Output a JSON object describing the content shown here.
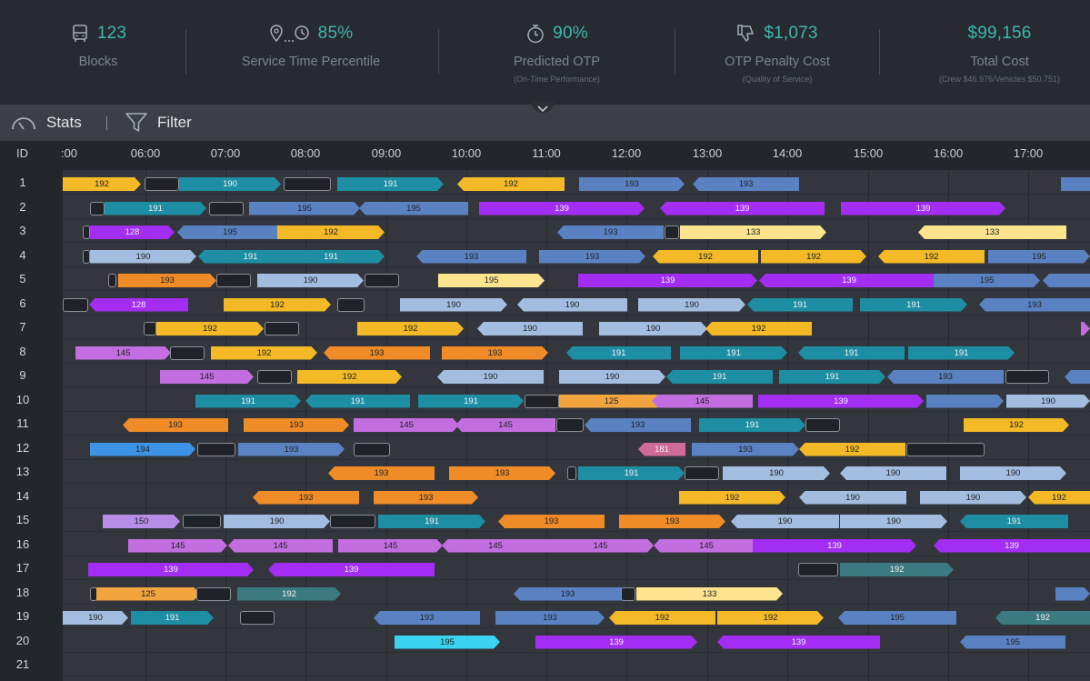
{
  "kpis": [
    {
      "icon": "bus-icon",
      "value": "123",
      "label": "Blocks",
      "sub": ""
    },
    {
      "icon": "route-clock-icon",
      "value": "85%",
      "label": "Service Time Percentile",
      "sub": ""
    },
    {
      "icon": "stopwatch-icon",
      "value": "90%",
      "label": "Predicted OTP",
      "sub": "(On-Time Performance)"
    },
    {
      "icon": "thumbs-down-icon",
      "value": "$1,073",
      "label": "OTP Penalty Cost",
      "sub": "(Quality of Service)"
    },
    {
      "icon": "",
      "value": "$99,156",
      "label": "Total Cost",
      "sub": "(Crew $46.976/Vehicles $50.751)"
    }
  ],
  "toolbar": {
    "stats_label": "Stats",
    "filter_label": "Filter",
    "separator": "|"
  },
  "schedule": {
    "id_header": "ID",
    "hours": [
      ":00",
      "06:00",
      "07:00",
      "08:00",
      "09:00",
      "10:00",
      "11:00",
      "12:00",
      "13:00",
      "14:00",
      "15:00",
      "16:00",
      "17:00"
    ],
    "colors": {
      "190": "#a2bde0",
      "191": "#1d8ea3",
      "192": "#f3b926",
      "193": "#5a82c3",
      "195": "#5a82c3",
      "139": "#a32df2",
      "133": "#fde48e",
      "128": "#a32df2",
      "145": "#c36ee0",
      "125": "#f2a43f",
      "181": "#cf6c96",
      "194": "#3d93e6",
      "150": "#b78de8",
      "193o": "#f08c28",
      "195y": "#fde48e",
      "192t": "#3a7a80",
      "195t": "#3a7a80",
      "195c": "#3ad4f0"
    },
    "rows": [
      {
        "id": "1",
        "trips": [
          [
            "192",
            "192",
            "r"
          ],
          [
            "",
            "",
            "g"
          ],
          [
            "190",
            "191",
            "r"
          ],
          [
            "",
            "",
            "g"
          ],
          [
            "191",
            "191",
            "r"
          ],
          [
            "192",
            "192",
            "l"
          ],
          [
            "193",
            "193",
            "r"
          ],
          [
            "193",
            "193",
            "l"
          ],
          [
            "",
            "193",
            "r"
          ]
        ]
      },
      {
        "id": "2",
        "trips": [
          [
            "",
            "",
            "g"
          ],
          [
            "191",
            "191",
            "r"
          ],
          [
            "",
            "",
            "g"
          ],
          [
            "195",
            "193",
            "r"
          ],
          [
            "195",
            "193",
            "l"
          ],
          [
            "139",
            "139",
            "r"
          ],
          [
            "139",
            "139",
            "l"
          ],
          [
            "139",
            "139",
            "r"
          ]
        ]
      },
      {
        "id": "3",
        "trips": [
          [
            "",
            "",
            "g"
          ],
          [
            "128",
            "128",
            "r"
          ],
          [
            "195",
            "193",
            "l"
          ],
          [
            "192",
            "192",
            "r"
          ],
          [
            "193",
            "193",
            "l"
          ],
          [
            "",
            "",
            "g"
          ],
          [
            "133",
            "133",
            "r"
          ],
          [
            "133",
            "133",
            "l"
          ]
        ]
      },
      {
        "id": "4",
        "trips": [
          [
            "",
            "",
            "g"
          ],
          [
            "190",
            "190",
            "r"
          ],
          [
            "191",
            "191",
            "l"
          ],
          [
            "191",
            "191",
            "r"
          ],
          [
            "193",
            "193",
            "l"
          ],
          [
            "193",
            "193",
            "r"
          ],
          [
            "192",
            "192",
            "l"
          ],
          [
            "192",
            "192",
            "r"
          ],
          [
            "192",
            "192",
            "l"
          ],
          [
            "195",
            "193",
            "r"
          ]
        ]
      },
      {
        "id": "5",
        "trips": [
          [
            "",
            "",
            "g"
          ],
          [
            "193",
            "193o",
            "r"
          ],
          [
            "",
            "",
            "g"
          ],
          [
            "190",
            "190",
            "r"
          ],
          [
            "",
            "",
            "g"
          ],
          [
            "195",
            "195y",
            "r"
          ],
          [
            "139",
            "139",
            "r"
          ],
          [
            "139",
            "139",
            "l"
          ],
          [
            "195",
            "193",
            "r"
          ],
          [
            "",
            "193",
            "l"
          ]
        ]
      },
      {
        "id": "6",
        "trips": [
          [
            "",
            "",
            "g"
          ],
          [
            "128",
            "128",
            "l"
          ],
          [
            "192",
            "192",
            "r"
          ],
          [
            "",
            "",
            "g"
          ],
          [
            "190",
            "190",
            "r"
          ],
          [
            "190",
            "190",
            "l"
          ],
          [
            "190",
            "190",
            "r"
          ],
          [
            "191",
            "191",
            "l"
          ],
          [
            "191",
            "191",
            "r"
          ],
          [
            "193",
            "193",
            "l"
          ]
        ]
      },
      {
        "id": "7",
        "trips": [
          [
            "",
            "",
            "g"
          ],
          [
            "192",
            "192",
            "r"
          ],
          [
            "",
            "",
            "g"
          ],
          [
            "192",
            "192",
            "r"
          ],
          [
            "190",
            "190",
            "l"
          ],
          [
            "190",
            "190",
            "r"
          ],
          [
            "192",
            "192",
            "l"
          ],
          [
            "",
            "145",
            "r"
          ]
        ]
      },
      {
        "id": "8",
        "trips": [
          [
            "145",
            "145",
            "r"
          ],
          [
            "",
            "",
            "g"
          ],
          [
            "192",
            "192",
            "r"
          ],
          [
            "193",
            "193o",
            "l"
          ],
          [
            "193",
            "193o",
            "r"
          ],
          [
            "191",
            "191",
            "l"
          ],
          [
            "191",
            "191",
            "r"
          ],
          [
            "191",
            "191",
            "l"
          ],
          [
            "191",
            "191",
            "r"
          ]
        ]
      },
      {
        "id": "9",
        "trips": [
          [
            "145",
            "145",
            "r"
          ],
          [
            "",
            "",
            "g"
          ],
          [
            "192",
            "192",
            "r"
          ],
          [
            "190",
            "190",
            "l"
          ],
          [
            "190",
            "190",
            "r"
          ],
          [
            "191",
            "191",
            "l"
          ],
          [
            "191",
            "191",
            "r"
          ],
          [
            "193",
            "193",
            "l"
          ],
          [
            "",
            "",
            "g"
          ],
          [
            "",
            "193",
            "l"
          ]
        ]
      },
      {
        "id": "10",
        "trips": [
          [
            "191",
            "191",
            "r"
          ],
          [
            "191",
            "191",
            "l"
          ],
          [
            "191",
            "191",
            "r"
          ],
          [
            "",
            "",
            "g"
          ],
          [
            "125",
            "125",
            "r"
          ],
          [
            "145",
            "145",
            "l"
          ],
          [
            "139",
            "139",
            "r"
          ],
          [
            "",
            "193",
            "r"
          ],
          [
            "190",
            "190",
            "r"
          ]
        ]
      },
      {
        "id": "11",
        "trips": [
          [
            "193",
            "193o",
            "l"
          ],
          [
            "193",
            "193o",
            "r"
          ],
          [
            "145",
            "145",
            "r"
          ],
          [
            "145",
            "145",
            "l"
          ],
          [
            "",
            "",
            "g"
          ],
          [
            "193",
            "193",
            "l"
          ],
          [
            "191",
            "191",
            "r"
          ],
          [
            "",
            "",
            "g"
          ],
          [
            "192",
            "192",
            "r"
          ]
        ]
      },
      {
        "id": "12",
        "trips": [
          [
            "194",
            "194",
            "r"
          ],
          [
            "",
            "",
            "g"
          ],
          [
            "193",
            "193",
            "r"
          ],
          [
            "",
            "",
            "g"
          ],
          [
            "181",
            "181",
            "l"
          ],
          [
            "193",
            "193",
            "r"
          ],
          [
            "192",
            "192",
            "l"
          ],
          [
            "",
            "",
            "g"
          ]
        ]
      },
      {
        "id": "13",
        "trips": [
          [
            "193",
            "193o",
            "l"
          ],
          [
            "193",
            "193o",
            "r"
          ],
          [
            "",
            "",
            "g"
          ],
          [
            "191",
            "191",
            "r"
          ],
          [
            "",
            "",
            "g"
          ],
          [
            "190",
            "190",
            "r"
          ],
          [
            "190",
            "190",
            "l"
          ],
          [
            "190",
            "190",
            "r"
          ]
        ]
      },
      {
        "id": "14",
        "trips": [
          [
            "193",
            "193o",
            "l"
          ],
          [
            "193",
            "193o",
            "r"
          ],
          [
            "192",
            "192",
            "r"
          ],
          [
            "190",
            "190",
            "l"
          ],
          [
            "190",
            "190",
            "r"
          ],
          [
            "192",
            "192",
            "l"
          ]
        ]
      },
      {
        "id": "15",
        "trips": [
          [
            "150",
            "150",
            "r"
          ],
          [
            "",
            "",
            "g"
          ],
          [
            "190",
            "190",
            "r"
          ],
          [
            "",
            "",
            "g"
          ],
          [
            "191",
            "191",
            "r"
          ],
          [
            "193",
            "193o",
            "l"
          ],
          [
            "193",
            "193o",
            "r"
          ],
          [
            "190",
            "190",
            "l"
          ],
          [
            "190",
            "190",
            "r"
          ],
          [
            "191",
            "191",
            "l"
          ]
        ]
      },
      {
        "id": "16",
        "trips": [
          [
            "145",
            "145",
            "r"
          ],
          [
            "145",
            "145",
            "l"
          ],
          [
            "145",
            "145",
            "r"
          ],
          [
            "145",
            "145",
            "l"
          ],
          [
            "145",
            "145",
            "r"
          ],
          [
            "145",
            "145",
            "l"
          ],
          [
            "139",
            "139",
            "r"
          ],
          [
            "139",
            "139",
            "l"
          ]
        ]
      },
      {
        "id": "17",
        "trips": [
          [
            "139",
            "139",
            "r"
          ],
          [
            "139",
            "139",
            "l"
          ],
          [
            "",
            "",
            "g"
          ],
          [
            "192",
            "192t",
            "r"
          ]
        ]
      },
      {
        "id": "18",
        "trips": [
          [
            "",
            "",
            "g"
          ],
          [
            "125",
            "125",
            "r"
          ],
          [
            "",
            "",
            "g"
          ],
          [
            "192",
            "192t",
            "r"
          ],
          [
            "193",
            "193",
            "l"
          ],
          [
            "",
            "",
            "g"
          ],
          [
            "133",
            "133",
            "r"
          ],
          [
            "",
            "193",
            "r"
          ]
        ]
      },
      {
        "id": "19",
        "trips": [
          [
            "190",
            "190",
            "r"
          ],
          [
            "191",
            "191",
            "r"
          ],
          [
            "",
            "",
            "g"
          ],
          [
            "193",
            "193",
            "l"
          ],
          [
            "193",
            "193",
            "r"
          ],
          [
            "192",
            "192",
            "l"
          ],
          [
            "192",
            "192",
            "r"
          ],
          [
            "195",
            "193",
            "l"
          ],
          [
            "192",
            "192t",
            "l"
          ]
        ]
      },
      {
        "id": "20",
        "trips": [
          [
            "195",
            "195c",
            "r"
          ],
          [
            "139",
            "139",
            "r"
          ],
          [
            "139",
            "139",
            "l"
          ],
          [
            "195",
            "193",
            "l"
          ]
        ]
      },
      {
        "id": "21",
        "trips": []
      }
    ]
  }
}
